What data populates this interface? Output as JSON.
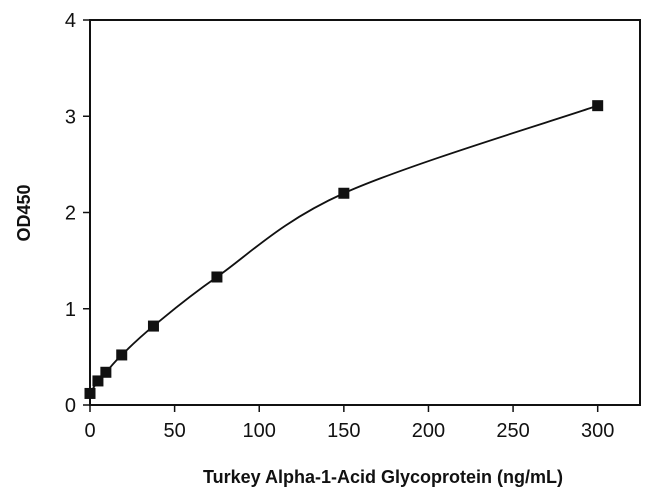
{
  "chart_data": {
    "type": "scatter",
    "title": "",
    "xlabel": "Turkey Alpha-1-Acid Glycoprotein (ng/mL)",
    "ylabel": "OD450",
    "xlim": [
      0,
      325
    ],
    "ylim": [
      0,
      4
    ],
    "xticks": [
      0,
      50,
      100,
      150,
      200,
      250,
      300
    ],
    "yticks": [
      0,
      1,
      2,
      3,
      4
    ],
    "grid": false,
    "legend": "none",
    "series": [
      {
        "marker": "square",
        "color": "#111111",
        "x": [
          0,
          4.69,
          9.38,
          18.75,
          37.5,
          75,
          150,
          300
        ],
        "y": [
          0.12,
          0.25,
          0.34,
          0.52,
          0.82,
          1.33,
          2.2,
          3.11
        ],
        "fit": "smooth-curve"
      }
    ]
  }
}
